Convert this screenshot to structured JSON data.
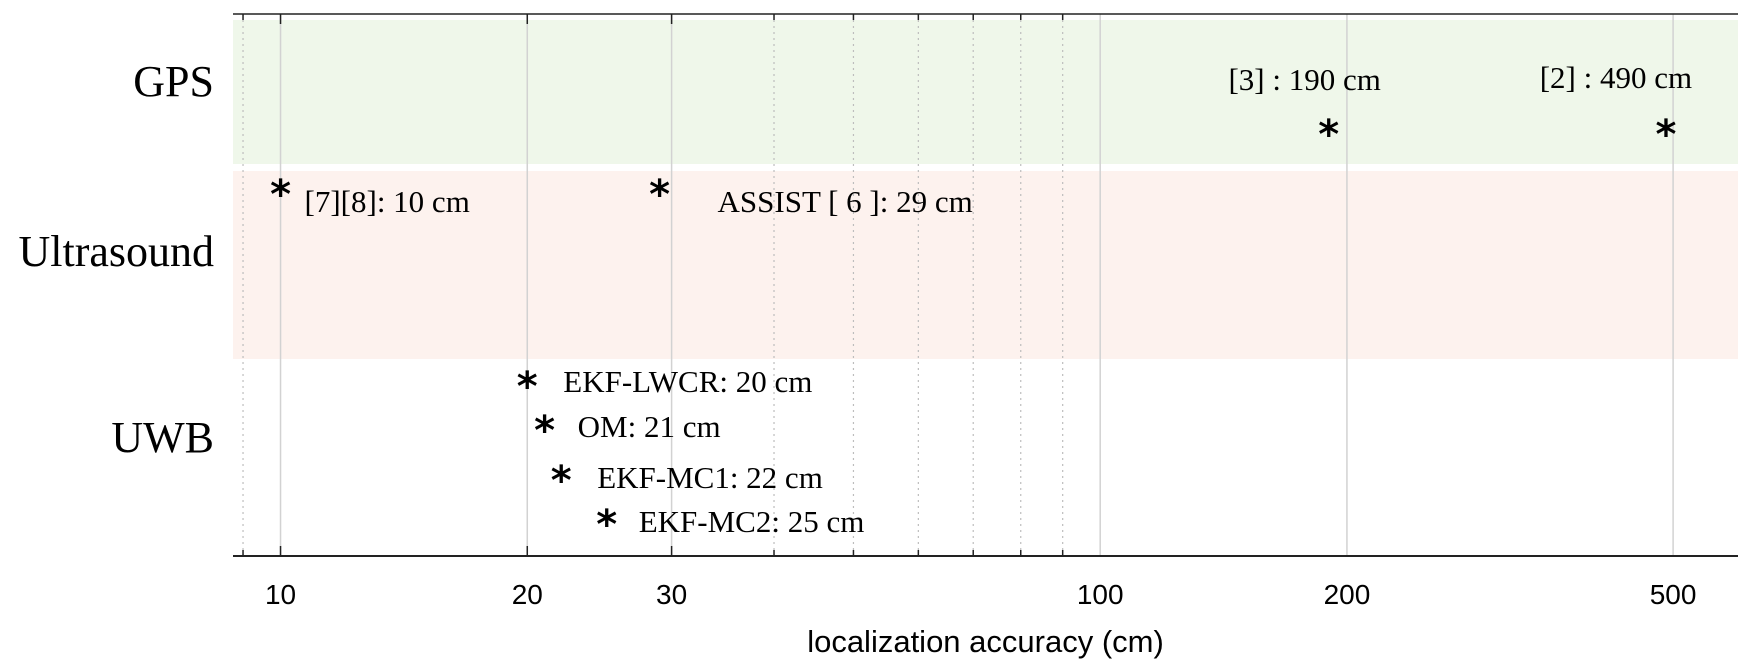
{
  "chart_data": {
    "type": "scatter",
    "xscale": "log",
    "xlim": [
      8.75,
      600
    ],
    "xlabel": "localization accuracy (cm)",
    "xticks": [
      10,
      20,
      30,
      100,
      200,
      500
    ],
    "grid": "vertical major (solid) and minor (dotted)",
    "categories": [
      "GPS",
      "Ultrasound",
      "UWB"
    ],
    "band_colors": {
      "GPS": "#eff7ea",
      "Ultrasound": "#fdf2ee",
      "UWB": "#ffffff"
    },
    "points": [
      {
        "category": "GPS",
        "x": 190,
        "label": "[3] : 190 cm"
      },
      {
        "category": "GPS",
        "x": 490,
        "label": "[2] : 490 cm"
      },
      {
        "category": "Ultrasound",
        "x": 10,
        "label": "[7][8]: 10 cm"
      },
      {
        "category": "Ultrasound",
        "x": 29,
        "label": "ASSIST [ 6 ]: 29 cm"
      },
      {
        "category": "UWB",
        "x": 20,
        "label": "EKF-LWCR: 20 cm"
      },
      {
        "category": "UWB",
        "x": 21,
        "label": "OM: 21 cm"
      },
      {
        "category": "UWB",
        "x": 22,
        "label": "EKF-MC1: 22 cm"
      },
      {
        "category": "UWB",
        "x": 25,
        "label": "EKF-MC2: 25 cm"
      }
    ]
  }
}
